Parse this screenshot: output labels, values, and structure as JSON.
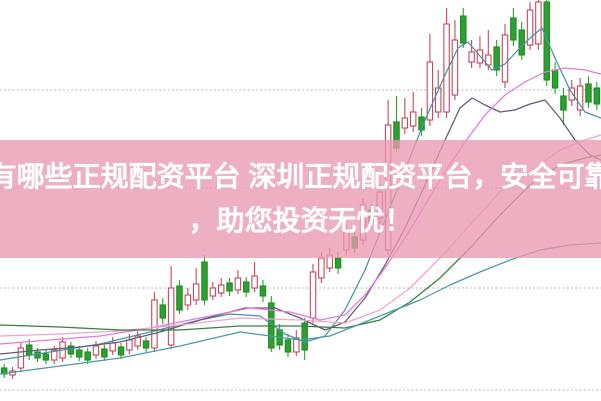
{
  "banner": {
    "line1": "有哪些正规配资平台 深圳正规配资平台，安全可靠",
    "line2": "，助您投资无忧！",
    "bg_color": "rgba(233,152,178,0.78)",
    "text_color": "#ffffff"
  },
  "chart_data": {
    "type": "candlestick",
    "title": "",
    "note": "no axis labels or legend visible in the pixels; values are a relative 0-400 scale read from plot positions",
    "y_range": [
      0,
      400
    ],
    "grid": {
      "show": true,
      "style": "dotted",
      "color": "#bcbcbc",
      "y_values": [
        310,
        212,
        112,
        10
      ]
    },
    "up_style": {
      "fill": "hollow",
      "color": "#c4495c"
    },
    "down_style": {
      "fill": "solid",
      "color": "#2ca12f",
      "edge": "#1f8a24"
    },
    "candles": [
      [
        "G",
        32,
        26,
        36,
        22
      ],
      [
        "R",
        25,
        29,
        33,
        21
      ],
      [
        "R",
        32,
        52,
        58,
        28
      ],
      [
        "G",
        55,
        45,
        61,
        40
      ],
      [
        "G",
        48,
        42,
        52,
        38
      ],
      [
        "G",
        46,
        40,
        50,
        36
      ],
      [
        "R",
        40,
        50,
        54,
        36
      ],
      [
        "R",
        42,
        58,
        63,
        38
      ],
      [
        "G",
        54,
        46,
        58,
        42
      ],
      [
        "G",
        50,
        43,
        54,
        39
      ],
      [
        "G",
        48,
        40,
        52,
        36
      ],
      [
        "R",
        45,
        54,
        59,
        41
      ],
      [
        "G",
        51,
        43,
        55,
        39
      ],
      [
        "R",
        49,
        57,
        63,
        45
      ],
      [
        "G",
        53,
        45,
        57,
        41
      ],
      [
        "R",
        50,
        60,
        66,
        46
      ],
      [
        "R",
        54,
        64,
        69,
        50
      ],
      [
        "G",
        59,
        52,
        63,
        48
      ],
      [
        "R",
        52,
        100,
        108,
        48
      ],
      [
        "G",
        95,
        82,
        102,
        76
      ],
      [
        "R",
        55,
        112,
        134,
        51
      ],
      [
        "G",
        114,
        90,
        120,
        86
      ],
      [
        "R",
        95,
        105,
        112,
        90
      ],
      [
        "R",
        100,
        116,
        132,
        95
      ],
      [
        "G",
        138,
        100,
        145,
        95
      ],
      [
        "R",
        104,
        112,
        118,
        100
      ],
      [
        "R",
        107,
        115,
        122,
        103
      ],
      [
        "G",
        117,
        109,
        122,
        104
      ],
      [
        "R",
        110,
        122,
        130,
        106
      ],
      [
        "G",
        118,
        108,
        123,
        103
      ],
      [
        "R",
        112,
        124,
        138,
        108
      ],
      [
        "G",
        114,
        104,
        120,
        98
      ],
      [
        "G",
        97,
        52,
        104,
        48
      ],
      [
        "G",
        70,
        55,
        76,
        50
      ],
      [
        "G",
        60,
        48,
        66,
        43
      ],
      [
        "R",
        48,
        62,
        70,
        44
      ],
      [
        "G",
        77,
        50,
        82,
        40
      ],
      [
        "R",
        82,
        128,
        136,
        77
      ],
      [
        "R",
        122,
        142,
        148,
        117
      ],
      [
        "R",
        132,
        145,
        152,
        128
      ],
      [
        "G",
        142,
        132,
        148,
        126
      ],
      [
        "R",
        150,
        168,
        175,
        145
      ],
      [
        "G",
        163,
        152,
        168,
        147
      ],
      [
        "R",
        160,
        195,
        202,
        155
      ],
      [
        "G",
        190,
        178,
        196,
        172
      ],
      [
        "R",
        182,
        208,
        216,
        176
      ],
      [
        "R",
        150,
        275,
        300,
        145
      ],
      [
        "G",
        278,
        252,
        304,
        248
      ],
      [
        "R",
        272,
        282,
        302,
        266
      ],
      [
        "R",
        274,
        288,
        308,
        268
      ],
      [
        "G",
        283,
        270,
        292,
        264
      ],
      [
        "R",
        280,
        338,
        366,
        274
      ],
      [
        "R",
        288,
        312,
        330,
        282
      ],
      [
        "R",
        288,
        376,
        392,
        282
      ],
      [
        "R",
        305,
        360,
        380,
        300
      ],
      [
        "G",
        384,
        357,
        392,
        352
      ],
      [
        "R",
        338,
        348,
        360,
        332
      ],
      [
        "R",
        337,
        350,
        364,
        332
      ],
      [
        "R",
        335,
        345,
        370,
        330
      ],
      [
        "G",
        353,
        330,
        360,
        324
      ],
      [
        "R",
        318,
        365,
        376,
        312
      ],
      [
        "G",
        382,
        360,
        392,
        354
      ],
      [
        "G",
        370,
        345,
        378,
        340
      ],
      [
        "R",
        355,
        390,
        398,
        350
      ],
      [
        "R",
        356,
        398,
        400,
        350
      ],
      [
        "G",
        398,
        320,
        400,
        314
      ],
      [
        "G",
        330,
        312,
        338,
        306
      ],
      [
        "G",
        304,
        290,
        312,
        275
      ],
      [
        "R",
        300,
        312,
        320,
        294
      ],
      [
        "R",
        290,
        314,
        322,
        284
      ],
      [
        "G",
        316,
        298,
        324,
        292
      ],
      [
        "G",
        312,
        296,
        318,
        290
      ]
    ],
    "ma_lines": [
      {
        "name": "ma-fast-teal",
        "color": "#4794a6",
        "points": [
          [
            0,
            40
          ],
          [
            50,
            48
          ],
          [
            100,
            56
          ],
          [
            150,
            68
          ],
          [
            200,
            80
          ],
          [
            230,
            86
          ],
          [
            260,
            84
          ],
          [
            285,
            66
          ],
          [
            305,
            58
          ],
          [
            325,
            64
          ],
          [
            345,
            90
          ],
          [
            365,
            130
          ],
          [
            385,
            180
          ],
          [
            405,
            230
          ],
          [
            425,
            280
          ],
          [
            445,
            325
          ],
          [
            458,
            352
          ],
          [
            468,
            358
          ],
          [
            480,
            344
          ],
          [
            492,
            330
          ],
          [
            505,
            336
          ],
          [
            518,
            350
          ],
          [
            530,
            362
          ],
          [
            542,
            372
          ],
          [
            555,
            342
          ],
          [
            570,
            310
          ],
          [
            585,
            288
          ],
          [
            601,
            282
          ]
        ]
      },
      {
        "name": "ma-slate",
        "color": "#5d5d75",
        "points": [
          [
            0,
            46
          ],
          [
            40,
            50
          ],
          [
            80,
            53
          ],
          [
            120,
            58
          ],
          [
            160,
            68
          ],
          [
            200,
            80
          ],
          [
            245,
            92
          ],
          [
            275,
            92
          ],
          [
            300,
            82
          ],
          [
            325,
            70
          ],
          [
            345,
            78
          ],
          [
            365,
            102
          ],
          [
            385,
            135
          ],
          [
            405,
            172
          ],
          [
            425,
            215
          ],
          [
            445,
            260
          ],
          [
            460,
            292
          ],
          [
            472,
            302
          ],
          [
            485,
            295
          ],
          [
            500,
            288
          ],
          [
            515,
            290
          ],
          [
            530,
            296
          ],
          [
            545,
            300
          ],
          [
            560,
            282
          ],
          [
            575,
            260
          ],
          [
            590,
            245
          ],
          [
            601,
            240
          ]
        ]
      },
      {
        "name": "ma-violet",
        "color": "#e678de",
        "points": [
          [
            0,
            56
          ],
          [
            50,
            60
          ],
          [
            100,
            64
          ],
          [
            150,
            72
          ],
          [
            200,
            82
          ],
          [
            250,
            92
          ],
          [
            290,
            88
          ],
          [
            320,
            80
          ],
          [
            345,
            85
          ],
          [
            365,
            105
          ],
          [
            385,
            132
          ],
          [
            405,
            162
          ],
          [
            425,
            195
          ],
          [
            445,
            228
          ],
          [
            465,
            258
          ],
          [
            485,
            285
          ],
          [
            505,
            305
          ],
          [
            525,
            318
          ],
          [
            545,
            328
          ],
          [
            565,
            332
          ],
          [
            585,
            330
          ],
          [
            601,
            326
          ]
        ]
      },
      {
        "name": "ma-pink",
        "color": "#f2a3cc",
        "points": [
          [
            0,
            64
          ],
          [
            60,
            66
          ],
          [
            120,
            69
          ],
          [
            180,
            75
          ],
          [
            240,
            82
          ],
          [
            300,
            80
          ],
          [
            345,
            77
          ],
          [
            380,
            90
          ],
          [
            410,
            112
          ],
          [
            440,
            142
          ],
          [
            470,
            175
          ],
          [
            500,
            208
          ],
          [
            530,
            228
          ],
          [
            560,
            250
          ],
          [
            585,
            260
          ],
          [
            601,
            265
          ]
        ]
      },
      {
        "name": "ma-green",
        "color": "#35803a",
        "points": [
          [
            0,
            75
          ],
          [
            60,
            73
          ],
          [
            120,
            70
          ],
          [
            180,
            70
          ],
          [
            240,
            74
          ],
          [
            300,
            74
          ],
          [
            345,
            72
          ],
          [
            380,
            80
          ],
          [
            410,
            98
          ],
          [
            440,
            122
          ],
          [
            470,
            152
          ],
          [
            500,
            185
          ],
          [
            530,
            215
          ],
          [
            560,
            235
          ],
          [
            585,
            242
          ],
          [
            601,
            245
          ]
        ]
      },
      {
        "name": "ma-slow-teal",
        "color": "#4a9aa8",
        "points": [
          [
            0,
            26
          ],
          [
            60,
            34
          ],
          [
            120,
            42
          ],
          [
            180,
            54
          ],
          [
            240,
            68
          ],
          [
            300,
            60
          ],
          [
            330,
            64
          ],
          [
            360,
            76
          ],
          [
            390,
            88
          ],
          [
            420,
            100
          ],
          [
            450,
            115
          ],
          [
            480,
            128
          ],
          [
            510,
            140
          ],
          [
            540,
            150
          ],
          [
            570,
            155
          ],
          [
            601,
            157
          ]
        ]
      }
    ]
  }
}
